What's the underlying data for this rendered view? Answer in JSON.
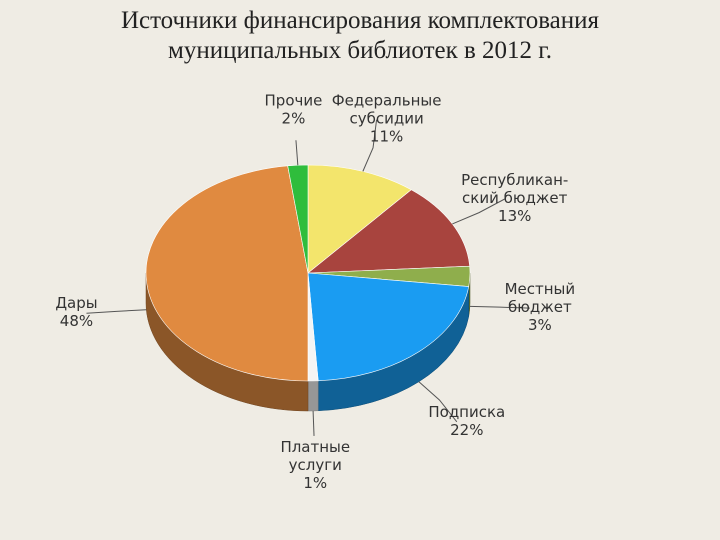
{
  "chart_data": {
    "type": "pie",
    "title": "Источники финансирования комплектования\nмуниципальных библиотек  в 2012 г.",
    "categories": [
      "Федеральные\nсубсидии",
      "Республикан-\nский бюджет",
      "Местный\nбюджет",
      "Подписка",
      "Платные\nуслуги",
      "Дары",
      "Прочие"
    ],
    "values": [
      11,
      13,
      3,
      22,
      1,
      48,
      2
    ],
    "value_labels": [
      "11%",
      "13%",
      "3%",
      "22%",
      "1%",
      "48%",
      "2%"
    ],
    "colors": [
      "#f3e56c",
      "#a8443e",
      "#8fae4c",
      "#1a9cf2",
      "#f4f4f4",
      "#e08a40",
      "#2fbd3c"
    ]
  }
}
